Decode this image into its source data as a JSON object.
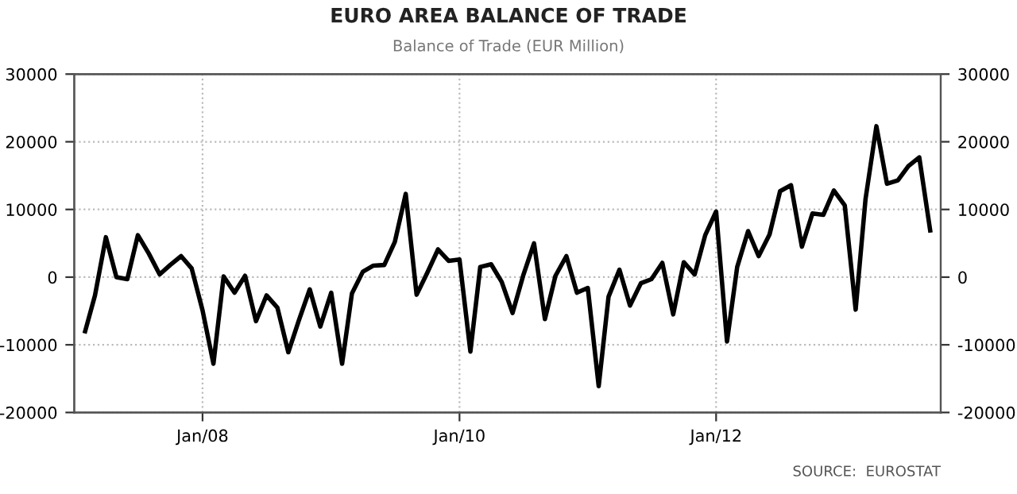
{
  "chart_data": {
    "type": "line",
    "title": "EURO AREA BALANCE OF TRADE",
    "subtitle": "Balance of Trade (EUR Million)",
    "annotations": [
      "SOURCE:  EUROSTAT"
    ],
    "x": [
      "2007-02",
      "2007-03",
      "2007-04",
      "2007-05",
      "2007-06",
      "2007-07",
      "2007-08",
      "2007-09",
      "2007-10",
      "2007-11",
      "2007-12",
      "2008-01",
      "2008-02",
      "2008-03",
      "2008-04",
      "2008-05",
      "2008-06",
      "2008-07",
      "2008-08",
      "2008-09",
      "2008-10",
      "2008-11",
      "2008-12",
      "2009-01",
      "2009-02",
      "2009-03",
      "2009-04",
      "2009-05",
      "2009-06",
      "2009-07",
      "2009-08",
      "2009-09",
      "2009-10",
      "2009-11",
      "2009-12",
      "2010-01",
      "2010-02",
      "2010-03",
      "2010-04",
      "2010-05",
      "2010-06",
      "2010-07",
      "2010-08",
      "2010-09",
      "2010-10",
      "2010-11",
      "2010-12",
      "2011-01",
      "2011-02",
      "2011-03",
      "2011-04",
      "2011-05",
      "2011-06",
      "2011-07",
      "2011-08",
      "2011-09",
      "2011-10",
      "2011-11",
      "2011-12",
      "2012-01",
      "2012-02",
      "2012-03",
      "2012-04",
      "2012-05",
      "2012-06",
      "2012-07",
      "2012-08",
      "2012-09",
      "2012-10",
      "2012-11",
      "2012-12",
      "2013-01",
      "2013-02",
      "2013-03",
      "2013-04",
      "2013-05",
      "2013-06",
      "2013-07",
      "2013-08",
      "2013-09"
    ],
    "series": [
      {
        "color": "#000000",
        "values": [
          -8000,
          -2700,
          5900,
          0,
          -300,
          6200,
          3500,
          400,
          1800,
          3100,
          1300,
          -4900,
          -12800,
          100,
          -2300,
          200,
          -6500,
          -2700,
          -4500,
          -11100,
          -6400,
          -1800,
          -7300,
          -2300,
          -12800,
          -2400,
          800,
          1700,
          1800,
          5200,
          12300,
          -2600,
          600,
          4100,
          2400,
          2600,
          -11000,
          1500,
          1900,
          -700,
          -5300,
          200,
          5000,
          -6200,
          200,
          3100,
          -2300,
          -1600,
          -16100,
          -2900,
          1100,
          -4200,
          -900,
          -300,
          2100,
          -5500,
          2200,
          400,
          6200,
          9700,
          -9500,
          1500,
          6800,
          3100,
          6300,
          12700,
          13600,
          4500,
          9400,
          9200,
          12800,
          10600,
          -4800,
          11500,
          22300,
          13800,
          14300,
          16400,
          17700,
          6900
        ]
      }
    ],
    "xlim": [
      "2007-01",
      "2013-10"
    ],
    "xticks": [
      {
        "value": "2008-01",
        "label": "Jan/08"
      },
      {
        "value": "2010-01",
        "label": "Jan/10"
      },
      {
        "value": "2012-01",
        "label": "Jan/12"
      }
    ],
    "ylim": [
      -20000,
      30000
    ],
    "yticks": [
      -20000,
      -10000,
      0,
      10000,
      20000,
      30000
    ],
    "y2lim": [
      -20000,
      30000
    ],
    "y2ticks": [
      -20000,
      -10000,
      0,
      10000,
      20000,
      30000
    ],
    "grid": true,
    "line_style": "solid",
    "marker": "none"
  }
}
